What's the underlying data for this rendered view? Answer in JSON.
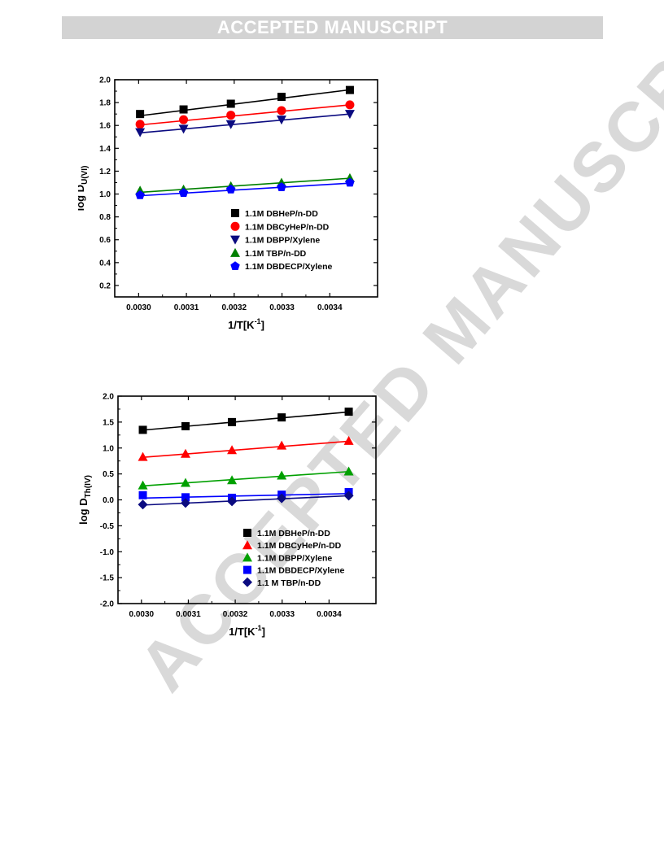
{
  "banner": {
    "text": "ACCEPTED MANUSCRIPT"
  },
  "watermark": {
    "text": "ACCEPTED MANUSCRIPT"
  },
  "chart_data": [
    {
      "type": "scatter",
      "title": "",
      "xlabel": "1/T[K",
      "xlabel_sup": "-1",
      "xlabel_tail": "]",
      "ylabel": "log D",
      "ylabel_sub": "U(VI)",
      "xlim": [
        0.00295,
        0.0035
      ],
      "ylim": [
        0.1,
        2.0
      ],
      "xticks": [
        0.003,
        0.0031,
        0.0032,
        0.0033,
        0.0034
      ],
      "xtick_labels": [
        "0.0030",
        "0.0031",
        "0.0032",
        "0.0033",
        "0.0034"
      ],
      "yticks": [
        0.2,
        0.4,
        0.6,
        0.8,
        1.0,
        1.2,
        1.4,
        1.6,
        1.8,
        2.0
      ],
      "ytick_labels": [
        "0.2",
        "0.4",
        "0.6",
        "0.8",
        "1.0",
        "1.2",
        "1.4",
        "1.6",
        "1.8",
        "2.0"
      ],
      "grid": false,
      "legend_position": "lower-right",
      "x": [
        0.003003,
        0.003094,
        0.003193,
        0.003299,
        0.003442
      ],
      "series": [
        {
          "name": "1.1M DBHeP/n-DD",
          "color": "#000000",
          "marker": "square",
          "values": [
            1.7,
            1.74,
            1.79,
            1.85,
            1.91
          ],
          "fit": [
            1.685,
            1.912
          ]
        },
        {
          "name": "1.1M DBCyHeP/n-DD",
          "color": "#ff0000",
          "marker": "circle",
          "values": [
            1.61,
            1.65,
            1.69,
            1.73,
            1.78
          ],
          "fit": [
            1.605,
            1.78
          ]
        },
        {
          "name": "1.1M DBPP/Xylene",
          "color": "#0b0b80",
          "marker": "triangle-down",
          "values": [
            1.54,
            1.57,
            1.61,
            1.65,
            1.7
          ],
          "fit": [
            1.535,
            1.7
          ]
        },
        {
          "name": "1.1M TBP/n-DD",
          "color": "#008000",
          "marker": "triangle-up",
          "values": [
            1.03,
            1.04,
            1.07,
            1.1,
            1.14
          ],
          "fit": [
            1.015,
            1.138
          ]
        },
        {
          "name": "1.1M DBDECP/Xylene",
          "color": "#0000ff",
          "marker": "pentagon",
          "values": [
            0.99,
            1.01,
            1.04,
            1.06,
            1.1
          ],
          "fit": [
            0.985,
            1.095
          ]
        }
      ]
    },
    {
      "type": "scatter",
      "title": "",
      "xlabel": "1/T[K",
      "xlabel_sup": "-1",
      "xlabel_tail": "]",
      "ylabel": "log D",
      "ylabel_sub": "Th(IV)",
      "xlim": [
        0.00295,
        0.0035
      ],
      "ylim": [
        -2.0,
        2.0
      ],
      "xticks": [
        0.003,
        0.0031,
        0.0032,
        0.0033,
        0.0034
      ],
      "xtick_labels": [
        "0.0030",
        "0.0031",
        "0.0032",
        "0.0033",
        "0.0034"
      ],
      "yticks": [
        -2.0,
        -1.5,
        -1.0,
        -0.5,
        0.0,
        0.5,
        1.0,
        1.5,
        2.0
      ],
      "ytick_labels": [
        "-2.0",
        "-1.5",
        "-1.0",
        "-0.5",
        "0.0",
        "0.5",
        "1.0",
        "1.5",
        "2.0"
      ],
      "grid": false,
      "legend_position": "lower-right",
      "x": [
        0.003003,
        0.003094,
        0.003193,
        0.003299,
        0.003442
      ],
      "series": [
        {
          "name": "1.1M DBHeP/n-DD",
          "color": "#000000",
          "marker": "square",
          "values": [
            1.35,
            1.42,
            1.5,
            1.59,
            1.7
          ],
          "fit": [
            1.345,
            1.695
          ]
        },
        {
          "name": "1.1M DBCyHeP/n-DD",
          "color": "#ff0000",
          "marker": "triangle-up",
          "values": [
            0.83,
            0.89,
            0.96,
            1.05,
            1.14
          ],
          "fit": [
            0.82,
            1.13
          ]
        },
        {
          "name": "1.1M DBPP/Xylene",
          "color": "#00a000",
          "marker": "triangle-up",
          "values": [
            0.28,
            0.33,
            0.38,
            0.47,
            0.55
          ],
          "fit": [
            0.27,
            0.545
          ]
        },
        {
          "name": "1.1M DBDECP/Xylene",
          "color": "#0000ff",
          "marker": "square",
          "values": [
            0.09,
            0.05,
            0.04,
            0.1,
            0.15
          ],
          "fit": [
            0.035,
            0.12
          ]
        },
        {
          "name": "1.1 M TBP/n-DD",
          "color": "#0b0b80",
          "marker": "diamond",
          "values": [
            -0.09,
            -0.06,
            -0.03,
            0.03,
            0.08
          ],
          "fit": [
            -0.1,
            0.08
          ]
        }
      ]
    }
  ]
}
